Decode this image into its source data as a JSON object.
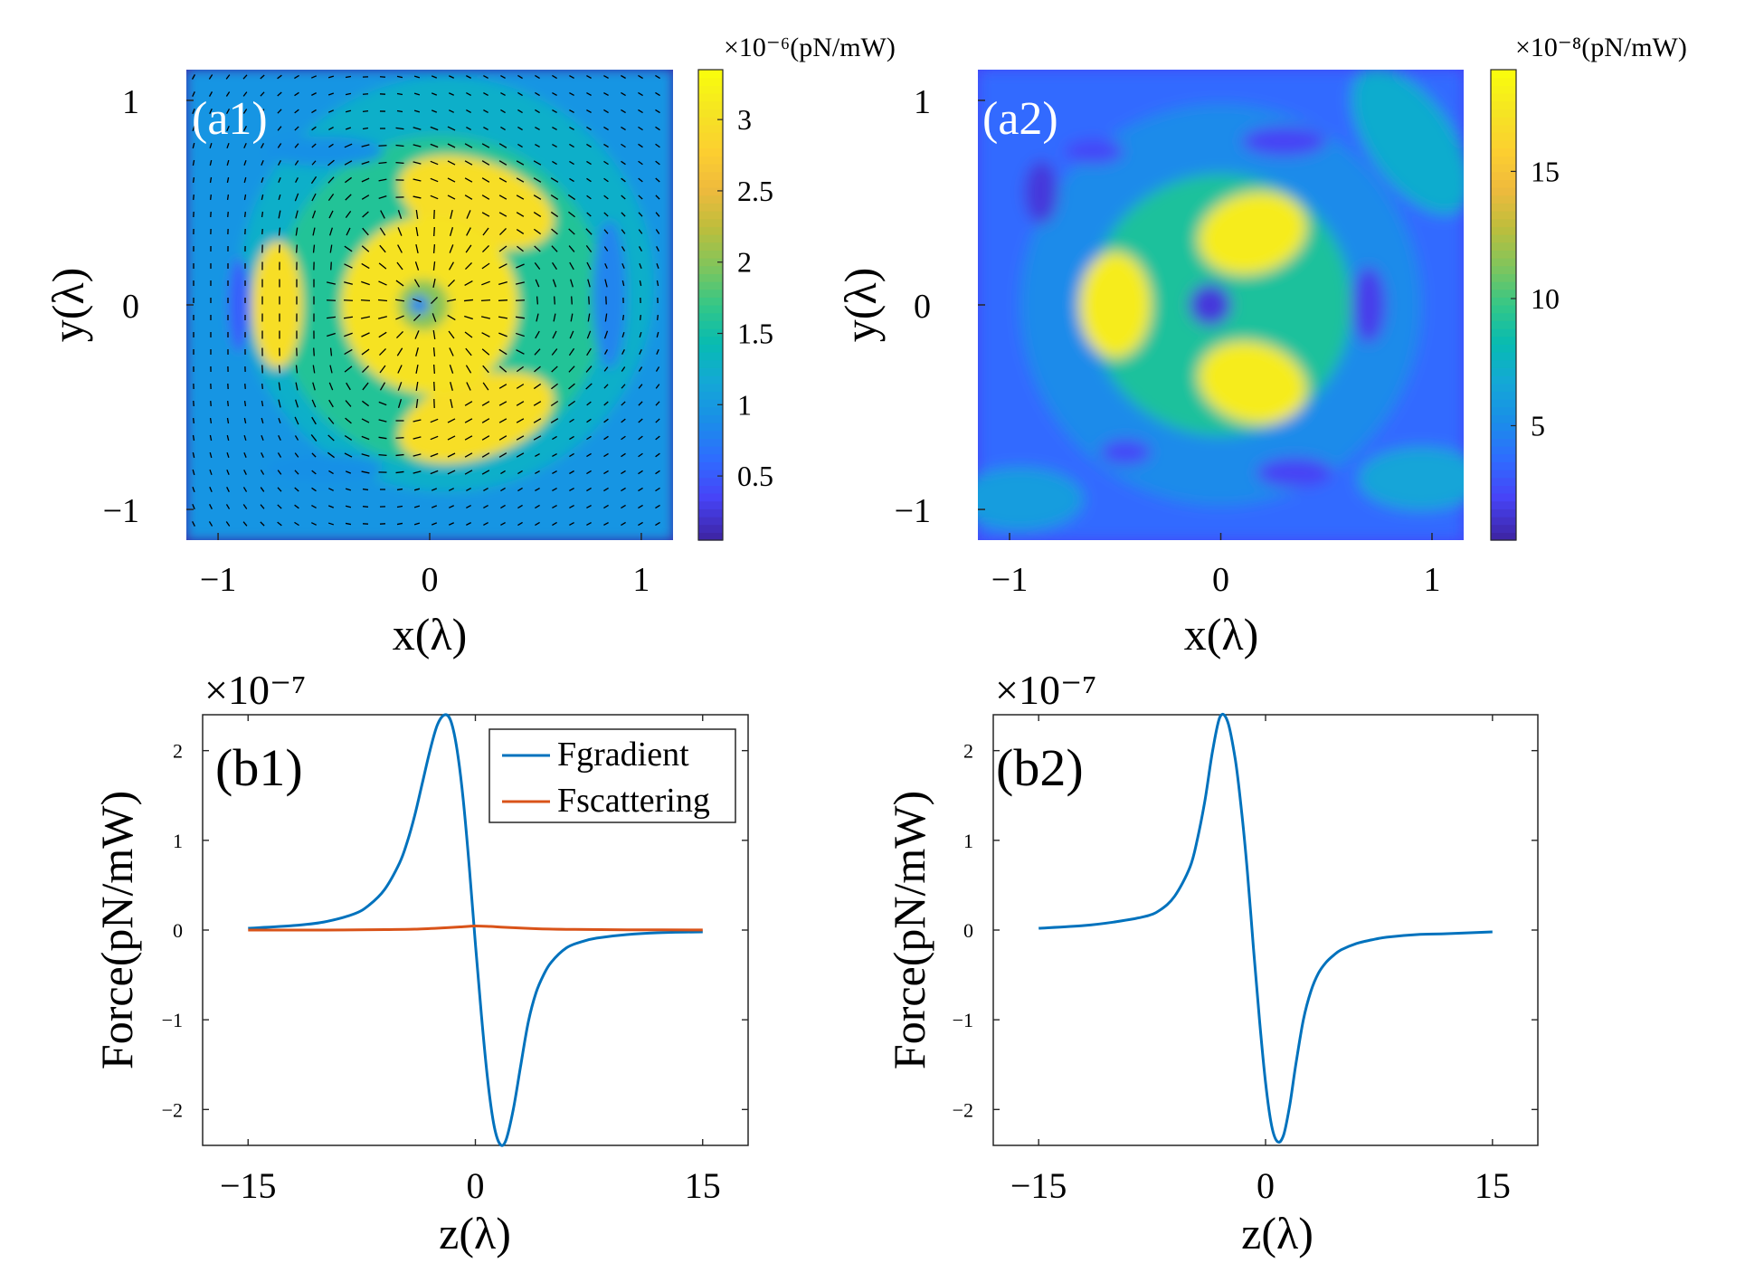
{
  "colors": {
    "parula": [
      "#3e26a8",
      "#4743f7",
      "#2f6cff",
      "#1a8ee8",
      "#14a8d6",
      "#07bbb2",
      "#34c787",
      "#80c55c",
      "#bdbe3c",
      "#efba3d",
      "#fccf30",
      "#f5e423",
      "#f9fb0e"
    ],
    "blue": "#0072bd",
    "orange": "#d95319",
    "arrow": "#000000"
  },
  "chart_data": [
    {
      "id": "a1",
      "type": "heatmap",
      "panel_label": "(a1)",
      "xlabel": "x(λ)",
      "ylabel": "y(λ)",
      "xlim": [
        -1.15,
        1.15
      ],
      "ylim": [
        -1.15,
        1.15
      ],
      "xticks": [
        -1,
        0,
        1
      ],
      "xtick_labels": [
        "−1",
        "0",
        "1"
      ],
      "yticks": [
        -1,
        0,
        1
      ],
      "ytick_labels": [
        "−1",
        "0",
        "1"
      ],
      "colorbar": {
        "label": "×10⁻⁶(pN/mW)",
        "range": [
          0.05,
          3.35
        ],
        "ticks": [
          0.5,
          1,
          1.5,
          2,
          2.5,
          3
        ],
        "tick_labels": [
          "0.5",
          "1",
          "1.5",
          "2",
          "2.5",
          "3"
        ]
      },
      "overlay": "force vector arrows (quiver)"
    },
    {
      "id": "a2",
      "type": "heatmap",
      "panel_label": "(a2)",
      "xlabel": "x(λ)",
      "ylabel": "y(λ)",
      "xlim": [
        -1.15,
        1.15
      ],
      "ylim": [
        -1.15,
        1.15
      ],
      "xticks": [
        -1,
        0,
        1
      ],
      "xtick_labels": [
        "−1",
        "0",
        "1"
      ],
      "yticks": [
        -1,
        0,
        1
      ],
      "ytick_labels": [
        "−1",
        "0",
        "1"
      ],
      "colorbar": {
        "label": "×10⁻⁸(pN/mW)",
        "range": [
          0.5,
          19
        ],
        "ticks": [
          5,
          10,
          15
        ],
        "tick_labels": [
          "5",
          "10",
          "15"
        ]
      }
    },
    {
      "id": "b1",
      "type": "line",
      "panel_label": "(b1)",
      "xlabel": "z(λ)",
      "ylabel": "Force(pN/mW)",
      "exponent_label": "×10⁻⁷",
      "xlim": [
        -18,
        18
      ],
      "ylim": [
        -2.4,
        2.4
      ],
      "xticks": [
        -15,
        0,
        15
      ],
      "xtick_labels": [
        "−15",
        "0",
        "15"
      ],
      "yticks": [
        -2,
        -1,
        0,
        1,
        2
      ],
      "ytick_labels": [
        "−2",
        "−1",
        "0",
        "1",
        "2"
      ],
      "legend": [
        "Fgradient",
        "Fscattering"
      ],
      "legend_position": "top-right",
      "series": [
        {
          "name": "Fgradient",
          "color": "#0072bd",
          "x": [
            -15,
            -12,
            -10,
            -8,
            -7,
            -6,
            -5,
            -4.5,
            -4,
            -3.5,
            -3,
            -2.5,
            -2,
            -1.6,
            -1.2,
            -0.8,
            -0.4,
            0,
            0.4,
            0.8,
            1.2,
            1.6,
            2,
            2.5,
            3,
            3.5,
            4,
            4.5,
            5,
            6,
            7,
            8,
            10,
            12,
            15
          ],
          "values": [
            0.02,
            0.05,
            0.09,
            0.18,
            0.28,
            0.45,
            0.75,
            0.98,
            1.28,
            1.64,
            2.0,
            2.29,
            2.4,
            2.32,
            2.0,
            1.45,
            0.7,
            -0.15,
            -0.95,
            -1.65,
            -2.15,
            -2.38,
            -2.35,
            -2.0,
            -1.5,
            -1.02,
            -0.7,
            -0.5,
            -0.36,
            -0.2,
            -0.13,
            -0.09,
            -0.05,
            -0.03,
            -0.02
          ]
        },
        {
          "name": "Fscattering",
          "color": "#d95319",
          "x": [
            -15,
            -10,
            -6,
            -4,
            -2,
            -1,
            0,
            1,
            2,
            4,
            6,
            10,
            15
          ],
          "values": [
            0,
            0.0,
            0.005,
            0.01,
            0.025,
            0.035,
            0.045,
            0.04,
            0.03,
            0.015,
            0.008,
            0.003,
            0.001
          ]
        }
      ]
    },
    {
      "id": "b2",
      "type": "line",
      "panel_label": "(b2)",
      "xlabel": "z(λ)",
      "ylabel": "Force(pN/mW)",
      "exponent_label": "×10⁻⁷",
      "xlim": [
        -18,
        18
      ],
      "ylim": [
        -2.4,
        2.4
      ],
      "xticks": [
        -15,
        0,
        15
      ],
      "xtick_labels": [
        "−15",
        "0",
        "15"
      ],
      "yticks": [
        -2,
        -1,
        0,
        1,
        2
      ],
      "ytick_labels": [
        "−2",
        "−1",
        "0",
        "1",
        "2"
      ],
      "series": [
        {
          "name": "Fgradient",
          "color": "#0072bd",
          "x": [
            -15,
            -12,
            -10,
            -8,
            -7,
            -6,
            -5,
            -4.5,
            -4,
            -3.5,
            -3,
            -2.5,
            -2,
            -1.6,
            -1.2,
            -0.8,
            -0.4,
            0,
            0.4,
            0.8,
            1.2,
            1.6,
            2,
            2.5,
            3,
            3.5,
            4,
            4.5,
            5,
            6,
            7,
            8,
            10,
            12,
            15
          ],
          "values": [
            0.02,
            0.05,
            0.09,
            0.15,
            0.22,
            0.38,
            0.7,
            1.02,
            1.45,
            2.0,
            2.38,
            2.32,
            1.9,
            1.35,
            0.65,
            -0.2,
            -1.0,
            -1.7,
            -2.18,
            -2.36,
            -2.28,
            -1.95,
            -1.5,
            -1.0,
            -0.68,
            -0.48,
            -0.36,
            -0.28,
            -0.22,
            -0.15,
            -0.11,
            -0.08,
            -0.05,
            -0.04,
            -0.02
          ]
        }
      ]
    }
  ]
}
